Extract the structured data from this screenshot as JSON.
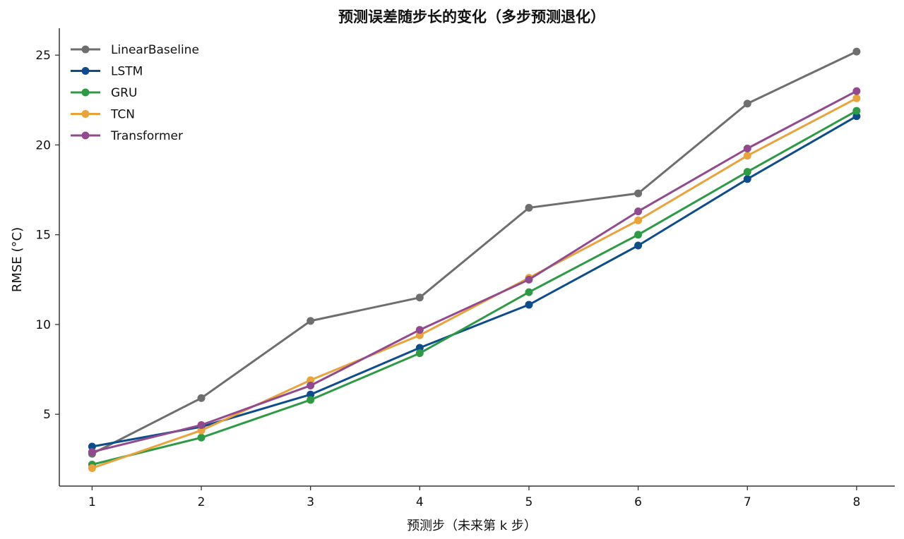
{
  "chart_data": {
    "type": "line",
    "title": "预测误差随步长的变化（多步预测退化）",
    "xlabel": "预测步（未来第 k 步）",
    "ylabel": "RMSE (°C)",
    "x": [
      1,
      2,
      3,
      4,
      5,
      6,
      7,
      8
    ],
    "x_ticks": [
      "1",
      "2",
      "3",
      "4",
      "5",
      "6",
      "7",
      "8"
    ],
    "y_ticks": [
      "5",
      "10",
      "15",
      "20",
      "25"
    ],
    "xlim": [
      0.7,
      8.35
    ],
    "ylim": [
      1.0,
      26.5
    ],
    "grid": false,
    "legend_position": "top-left",
    "series": [
      {
        "name": "LinearBaseline",
        "color": "#6e6e6e",
        "values": [
          2.8,
          5.9,
          10.2,
          11.5,
          16.5,
          17.3,
          22.3,
          25.2
        ]
      },
      {
        "name": "LSTM",
        "color": "#0f4c8a",
        "values": [
          3.2,
          4.3,
          6.1,
          8.7,
          11.1,
          14.4,
          18.1,
          21.6
        ]
      },
      {
        "name": "GRU",
        "color": "#2f9a45",
        "values": [
          2.2,
          3.7,
          5.8,
          8.4,
          11.8,
          15.0,
          18.5,
          21.9
        ]
      },
      {
        "name": "TCN",
        "color": "#e8a33d",
        "values": [
          2.0,
          4.1,
          6.9,
          9.4,
          12.6,
          15.8,
          19.4,
          22.6
        ]
      },
      {
        "name": "Transformer",
        "color": "#924a8e",
        "values": [
          2.9,
          4.4,
          6.6,
          9.7,
          12.5,
          16.3,
          19.8,
          23.0
        ]
      }
    ]
  }
}
